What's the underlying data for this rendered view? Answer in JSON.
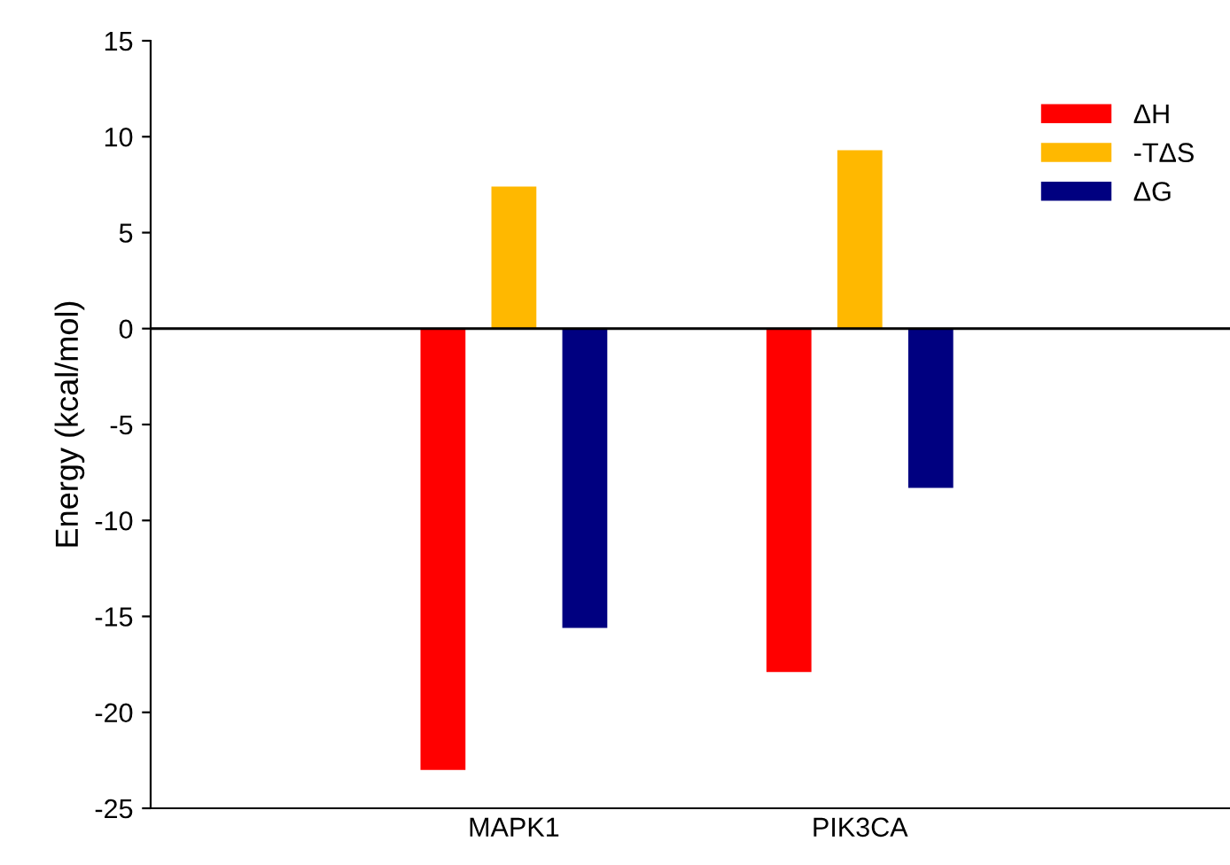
{
  "chart_data": {
    "type": "bar",
    "ylabel": "Energy (kcal/mol)",
    "categories": [
      "MAPK1",
      "PIK3CA"
    ],
    "series": [
      {
        "name": "ΔH",
        "color": "#ff0000",
        "values": [
          -23.0,
          -17.9
        ]
      },
      {
        "name": "-TΔS",
        "color": "#ffb800",
        "values": [
          7.4,
          9.3
        ]
      },
      {
        "name": "ΔG",
        "color": "#000080",
        "values": [
          -15.6,
          -8.3
        ]
      }
    ],
    "ylim": [
      -25,
      15
    ],
    "yticks": [
      -25,
      -20,
      -15,
      -10,
      -5,
      0,
      5,
      10,
      15
    ],
    "ref_lines": [
      {
        "axis": "y",
        "value": 0,
        "color": "#000000"
      }
    ],
    "grid": false,
    "legend": "top right"
  }
}
